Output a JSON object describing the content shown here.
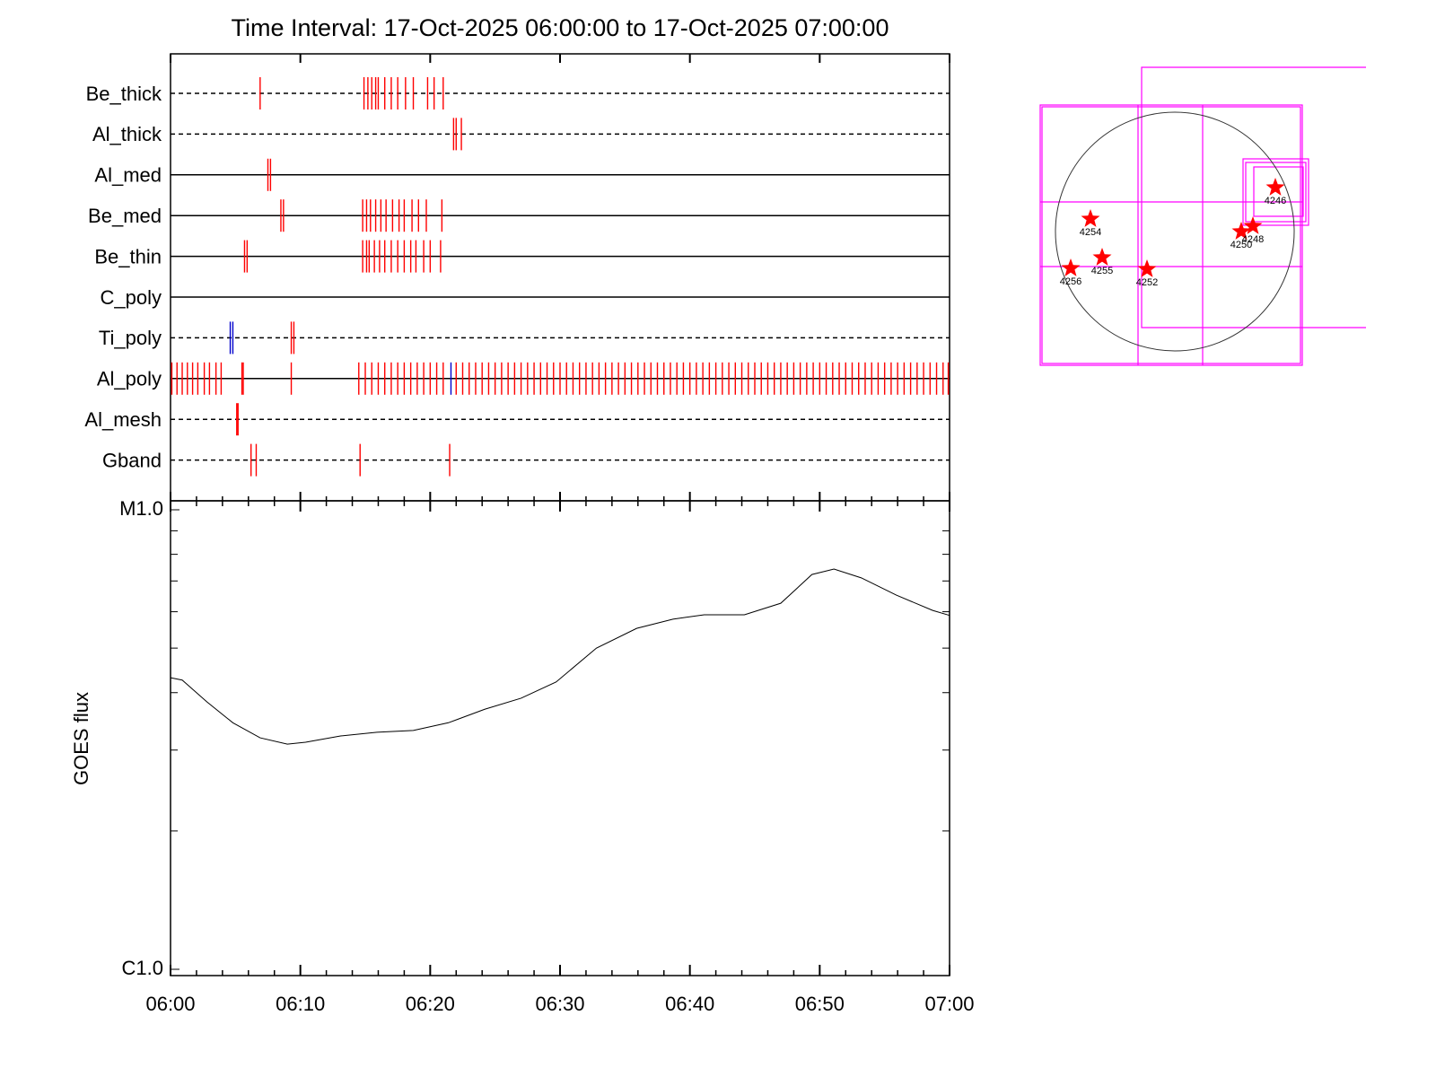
{
  "chart_data": [
    {
      "type": "event",
      "title": "Time Interval: 17-Oct-2025 06:00:00 to 17-Oct-2025 07:00:00",
      "xlim": [
        0,
        60
      ],
      "rows": [
        {
          "name": "Be_thick",
          "line_style": "dashed",
          "color": "#ff0000",
          "values": [
            6.9,
            14.9,
            15.2,
            15.5,
            15.8,
            16.0,
            16.5,
            17.0,
            17.5,
            18.1,
            18.7,
            19.8,
            20.3,
            21.0
          ]
        },
        {
          "name": "Al_thick",
          "line_style": "dashed",
          "color": "#ff0000",
          "values": [
            21.8,
            22.0,
            22.4
          ]
        },
        {
          "name": "Al_med",
          "line_style": "solid",
          "color": "#ff0000",
          "values": [
            7.5,
            7.7
          ]
        },
        {
          "name": "Be_med",
          "line_style": "solid",
          "color": "#ff0000",
          "values": [
            8.5,
            8.7,
            14.8,
            15.1,
            15.4,
            15.8,
            16.2,
            16.6,
            17.1,
            17.6,
            18.0,
            18.6,
            19.1,
            19.7,
            20.9
          ]
        },
        {
          "name": "Be_thin",
          "line_style": "solid",
          "color": "#ff0000",
          "values": [
            5.7,
            5.9,
            14.8,
            15.1,
            15.3,
            15.7,
            16.1,
            16.5,
            17.0,
            17.5,
            18.0,
            18.5,
            18.9,
            19.5,
            20.0,
            20.8
          ]
        },
        {
          "name": "C_poly",
          "line_style": "solid",
          "color": "#ff0000",
          "values": []
        },
        {
          "name": "Ti_poly",
          "line_style": "dashed",
          "color": "#ff0000",
          "values": [
            9.3,
            9.5
          ],
          "alt_values": [
            4.6,
            4.8
          ],
          "alt_color": "#0000cc"
        },
        {
          "name": "Al_poly",
          "line_style": "solid",
          "color": "#ff0000",
          "values": [
            0.1,
            0.5,
            0.9,
            1.3,
            1.7,
            2.1,
            2.6,
            3.0,
            3.5,
            3.9,
            5.5,
            5.6,
            9.3,
            14.5,
            15.0,
            15.5,
            16.0,
            16.5,
            17.0,
            17.5,
            18.0,
            18.5,
            19.0,
            19.5,
            20.0,
            20.5,
            21.0,
            22.0,
            22.5,
            23.0,
            23.5,
            24.0,
            24.5,
            25.0,
            25.5,
            26.0,
            26.5,
            27.0,
            27.5,
            28.0,
            28.5,
            29.0,
            29.5,
            30.0,
            30.5,
            31.0,
            31.5,
            32.0,
            32.5,
            33.0,
            33.5,
            34.0,
            34.5,
            35.0,
            35.5,
            36.0,
            36.5,
            37.0,
            37.5,
            38.0,
            38.5,
            39.0,
            39.5,
            40.0,
            40.5,
            41.0,
            41.5,
            42.0,
            42.5,
            43.0,
            43.5,
            44.0,
            44.5,
            45.0,
            45.5,
            46.0,
            46.5,
            47.0,
            47.5,
            48.0,
            48.5,
            49.0,
            49.5,
            50.0,
            50.5,
            51.0,
            51.5,
            52.0,
            52.5,
            53.0,
            53.5,
            54.0,
            54.5,
            55.0,
            55.5,
            56.0,
            56.5,
            57.0,
            57.5,
            58.0,
            58.5,
            59.0,
            59.5,
            59.9
          ],
          "alt_values": [
            21.6
          ],
          "alt_color": "#0000cc"
        },
        {
          "name": "Al_mesh",
          "line_style": "dashed",
          "color": "#ff0000",
          "values": [
            5.1,
            5.2
          ]
        },
        {
          "name": "Gband",
          "line_style": "dashed",
          "color": "#ff0000",
          "values": [
            6.2,
            6.6,
            14.6,
            21.5
          ]
        }
      ]
    },
    {
      "type": "line",
      "ylabel": "GOES flux",
      "color": "#000000",
      "x": [
        0,
        0.9,
        2.8,
        4.8,
        6.9,
        9.0,
        10.4,
        13.1,
        15.9,
        18.7,
        21.4,
        24.2,
        27.0,
        29.7,
        32.8,
        35.9,
        38.7,
        41.1,
        44.2,
        47.0,
        49.4,
        51.1,
        53.2,
        55.9,
        58.7,
        60
      ],
      "values": [
        4.31e-06,
        4.26e-06,
        3.82e-06,
        3.44e-06,
        3.19e-06,
        3.09e-06,
        3.12e-06,
        3.22e-06,
        3.28e-06,
        3.31e-06,
        3.44e-06,
        3.68e-06,
        3.89e-06,
        4.22e-06,
        5e-06,
        5.52e-06,
        5.78e-06,
        5.91e-06,
        5.91e-06,
        6.26e-06,
        7.23e-06,
        7.43e-06,
        7.11e-06,
        6.52e-06,
        6.04e-06,
        5.89e-06
      ],
      "xlim": [
        0,
        60
      ],
      "xticks": [
        {
          "value": 0,
          "label": "06:00"
        },
        {
          "value": 10,
          "label": "06:10"
        },
        {
          "value": 20,
          "label": "06:20"
        },
        {
          "value": 30,
          "label": "06:30"
        },
        {
          "value": 40,
          "label": "06:40"
        },
        {
          "value": 50,
          "label": "06:50"
        },
        {
          "value": 60,
          "label": "07:00"
        }
      ],
      "minor_xticks": [
        2,
        4,
        6,
        8,
        12,
        14,
        16,
        18,
        22,
        24,
        26,
        28,
        32,
        34,
        36,
        38,
        42,
        44,
        46,
        48,
        52,
        54,
        56,
        58
      ],
      "ylim": [
        1e-06,
        1e-05
      ],
      "log_scale": true,
      "yticks": [
        {
          "value": 1e-06,
          "label": "C1.0"
        },
        {
          "value": 1e-05,
          "label": "M1.0"
        }
      ],
      "minor_yticks": [
        2e-06,
        3e-06,
        4e-06,
        5e-06,
        6e-06,
        7e-06,
        8e-06,
        9e-06
      ]
    },
    {
      "type": "map",
      "star_color": "#ff0000",
      "regions": [
        "4246",
        "4254",
        "4250",
        "4248",
        "4255",
        "4256",
        "4252"
      ]
    }
  ]
}
